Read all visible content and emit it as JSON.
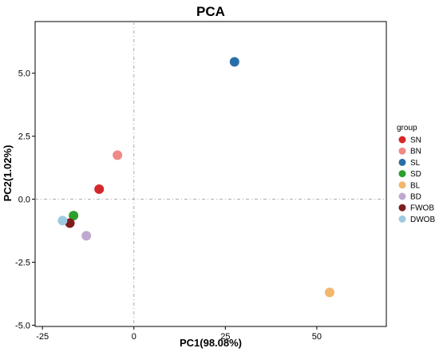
{
  "chart_data": {
    "type": "scatter",
    "title": "PCA",
    "xlabel": "PC1(98.08%)",
    "ylabel": "PC2(1.02%)",
    "xlim": [
      -27,
      69
    ],
    "ylim": [
      -5.05,
      7.05
    ],
    "xticks": [
      -25,
      0,
      25,
      50
    ],
    "xtick_labels": [
      "-25",
      "0",
      "25",
      "50"
    ],
    "yticks": [
      -5.0,
      -2.5,
      0.0,
      2.5,
      5.0
    ],
    "ytick_labels": [
      "-5.0",
      "-2.5",
      "0.0",
      "2.5",
      "5.0"
    ],
    "reference_lines": {
      "x": 0,
      "y": 0
    },
    "grid": false,
    "legend_position": "right",
    "legend_title": "group",
    "series": [
      {
        "name": "SN",
        "color": "#d62728",
        "x": [
          -9.5
        ],
        "y": [
          0.4
        ]
      },
      {
        "name": "BN",
        "color": "#ef8a86",
        "x": [
          -4.5
        ],
        "y": [
          1.75
        ]
      },
      {
        "name": "SL",
        "color": "#2a6ea8",
        "x": [
          27.5
        ],
        "y": [
          5.45
        ]
      },
      {
        "name": "SD",
        "color": "#2ca02c",
        "x": [
          -16.5
        ],
        "y": [
          -0.65
        ]
      },
      {
        "name": "BL",
        "color": "#f3b66b",
        "x": [
          53.5
        ],
        "y": [
          -3.7
        ]
      },
      {
        "name": "BD",
        "color": "#c0a9d0",
        "x": [
          -13
        ],
        "y": [
          -1.45
        ]
      },
      {
        "name": "FWOB",
        "color": "#7f1d1d",
        "x": [
          -17.5
        ],
        "y": [
          -0.95
        ]
      },
      {
        "name": "DWOB",
        "color": "#9ecae1",
        "x": [
          -19.5
        ],
        "y": [
          -0.85
        ]
      }
    ]
  }
}
